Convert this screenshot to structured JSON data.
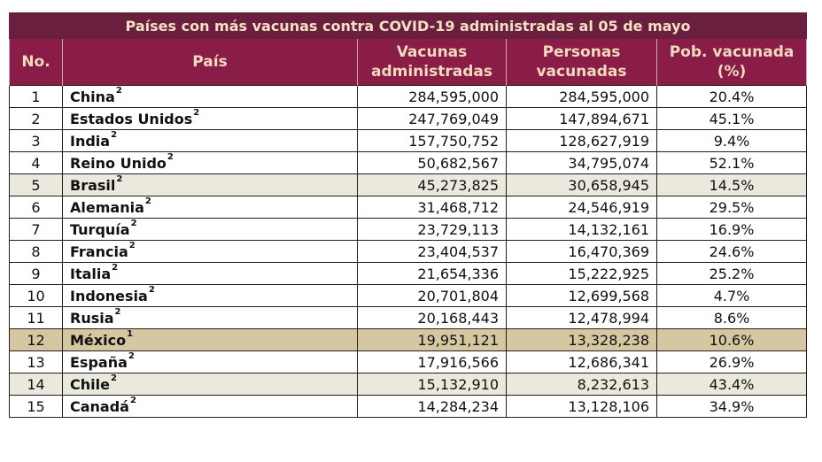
{
  "title": "Países con más vacunas contra COVID-19 administradas al 05 de mayo",
  "headers": {
    "no": "No.",
    "pais": "País",
    "vacunas_l1": "Vacunas",
    "vacunas_l2": "administradas",
    "personas_l1": "Personas",
    "personas_l2": "vacunadas",
    "pob_l1": "Pob. vacunada",
    "pob_l2": "(%)"
  },
  "colors": {
    "title_bg": "#6b1f3e",
    "header_bg": "#8a1d47",
    "header_text": "#f1d9bd",
    "highlight_light": "#ebe8dd",
    "highlight_mexico": "#d6c7a3"
  },
  "rows": [
    {
      "no": "1",
      "pais": "China",
      "nota": "2",
      "vacunas": "284,595,000",
      "personas": "284,595,000",
      "pob": "20.4%",
      "highlight": ""
    },
    {
      "no": "2",
      "pais": "Estados Unidos",
      "nota": "2",
      "vacunas": "247,769,049",
      "personas": "147,894,671",
      "pob": "45.1%",
      "highlight": ""
    },
    {
      "no": "3",
      "pais": "India",
      "nota": "2",
      "vacunas": "157,750,752",
      "personas": "128,627,919",
      "pob": "9.4%",
      "highlight": ""
    },
    {
      "no": "4",
      "pais": "Reino Unido",
      "nota": "2",
      "vacunas": "50,682,567",
      "personas": "34,795,074",
      "pob": "52.1%",
      "highlight": ""
    },
    {
      "no": "5",
      "pais": "Brasil",
      "nota": "2",
      "vacunas": "45,273,825",
      "personas": "30,658,945",
      "pob": "14.5%",
      "highlight": "light"
    },
    {
      "no": "6",
      "pais": "Alemania",
      "nota": "2",
      "vacunas": "31,468,712",
      "personas": "24,546,919",
      "pob": "29.5%",
      "highlight": ""
    },
    {
      "no": "7",
      "pais": "Turquía",
      "nota": "2",
      "vacunas": "23,729,113",
      "personas": "14,132,161",
      "pob": "16.9%",
      "highlight": ""
    },
    {
      "no": "8",
      "pais": "Francia",
      "nota": "2",
      "vacunas": "23,404,537",
      "personas": "16,470,369",
      "pob": "24.6%",
      "highlight": ""
    },
    {
      "no": "9",
      "pais": "Italia",
      "nota": "2",
      "vacunas": "21,654,336",
      "personas": "15,222,925",
      "pob": "25.2%",
      "highlight": ""
    },
    {
      "no": "10",
      "pais": "Indonesia",
      "nota": "2",
      "vacunas": "20,701,804",
      "personas": "12,699,568",
      "pob": "4.7%",
      "highlight": ""
    },
    {
      "no": "11",
      "pais": "Rusia",
      "nota": "2",
      "vacunas": "20,168,443",
      "personas": "12,478,994",
      "pob": "8.6%",
      "highlight": ""
    },
    {
      "no": "12",
      "pais": "México",
      "nota": "1",
      "vacunas": "19,951,121",
      "personas": "13,328,238",
      "pob": "10.6%",
      "highlight": "gold"
    },
    {
      "no": "13",
      "pais": "España",
      "nota": "2",
      "vacunas": "17,916,566",
      "personas": "12,686,341",
      "pob": "26.9%",
      "highlight": ""
    },
    {
      "no": "14",
      "pais": "Chile",
      "nota": "2",
      "vacunas": "15,132,910",
      "personas": "8,232,613",
      "pob": "43.4%",
      "highlight": "light"
    },
    {
      "no": "15",
      "pais": "Canadá",
      "nota": "2",
      "vacunas": "14,284,234",
      "personas": "13,128,106",
      "pob": "34.9%",
      "highlight": ""
    }
  ]
}
